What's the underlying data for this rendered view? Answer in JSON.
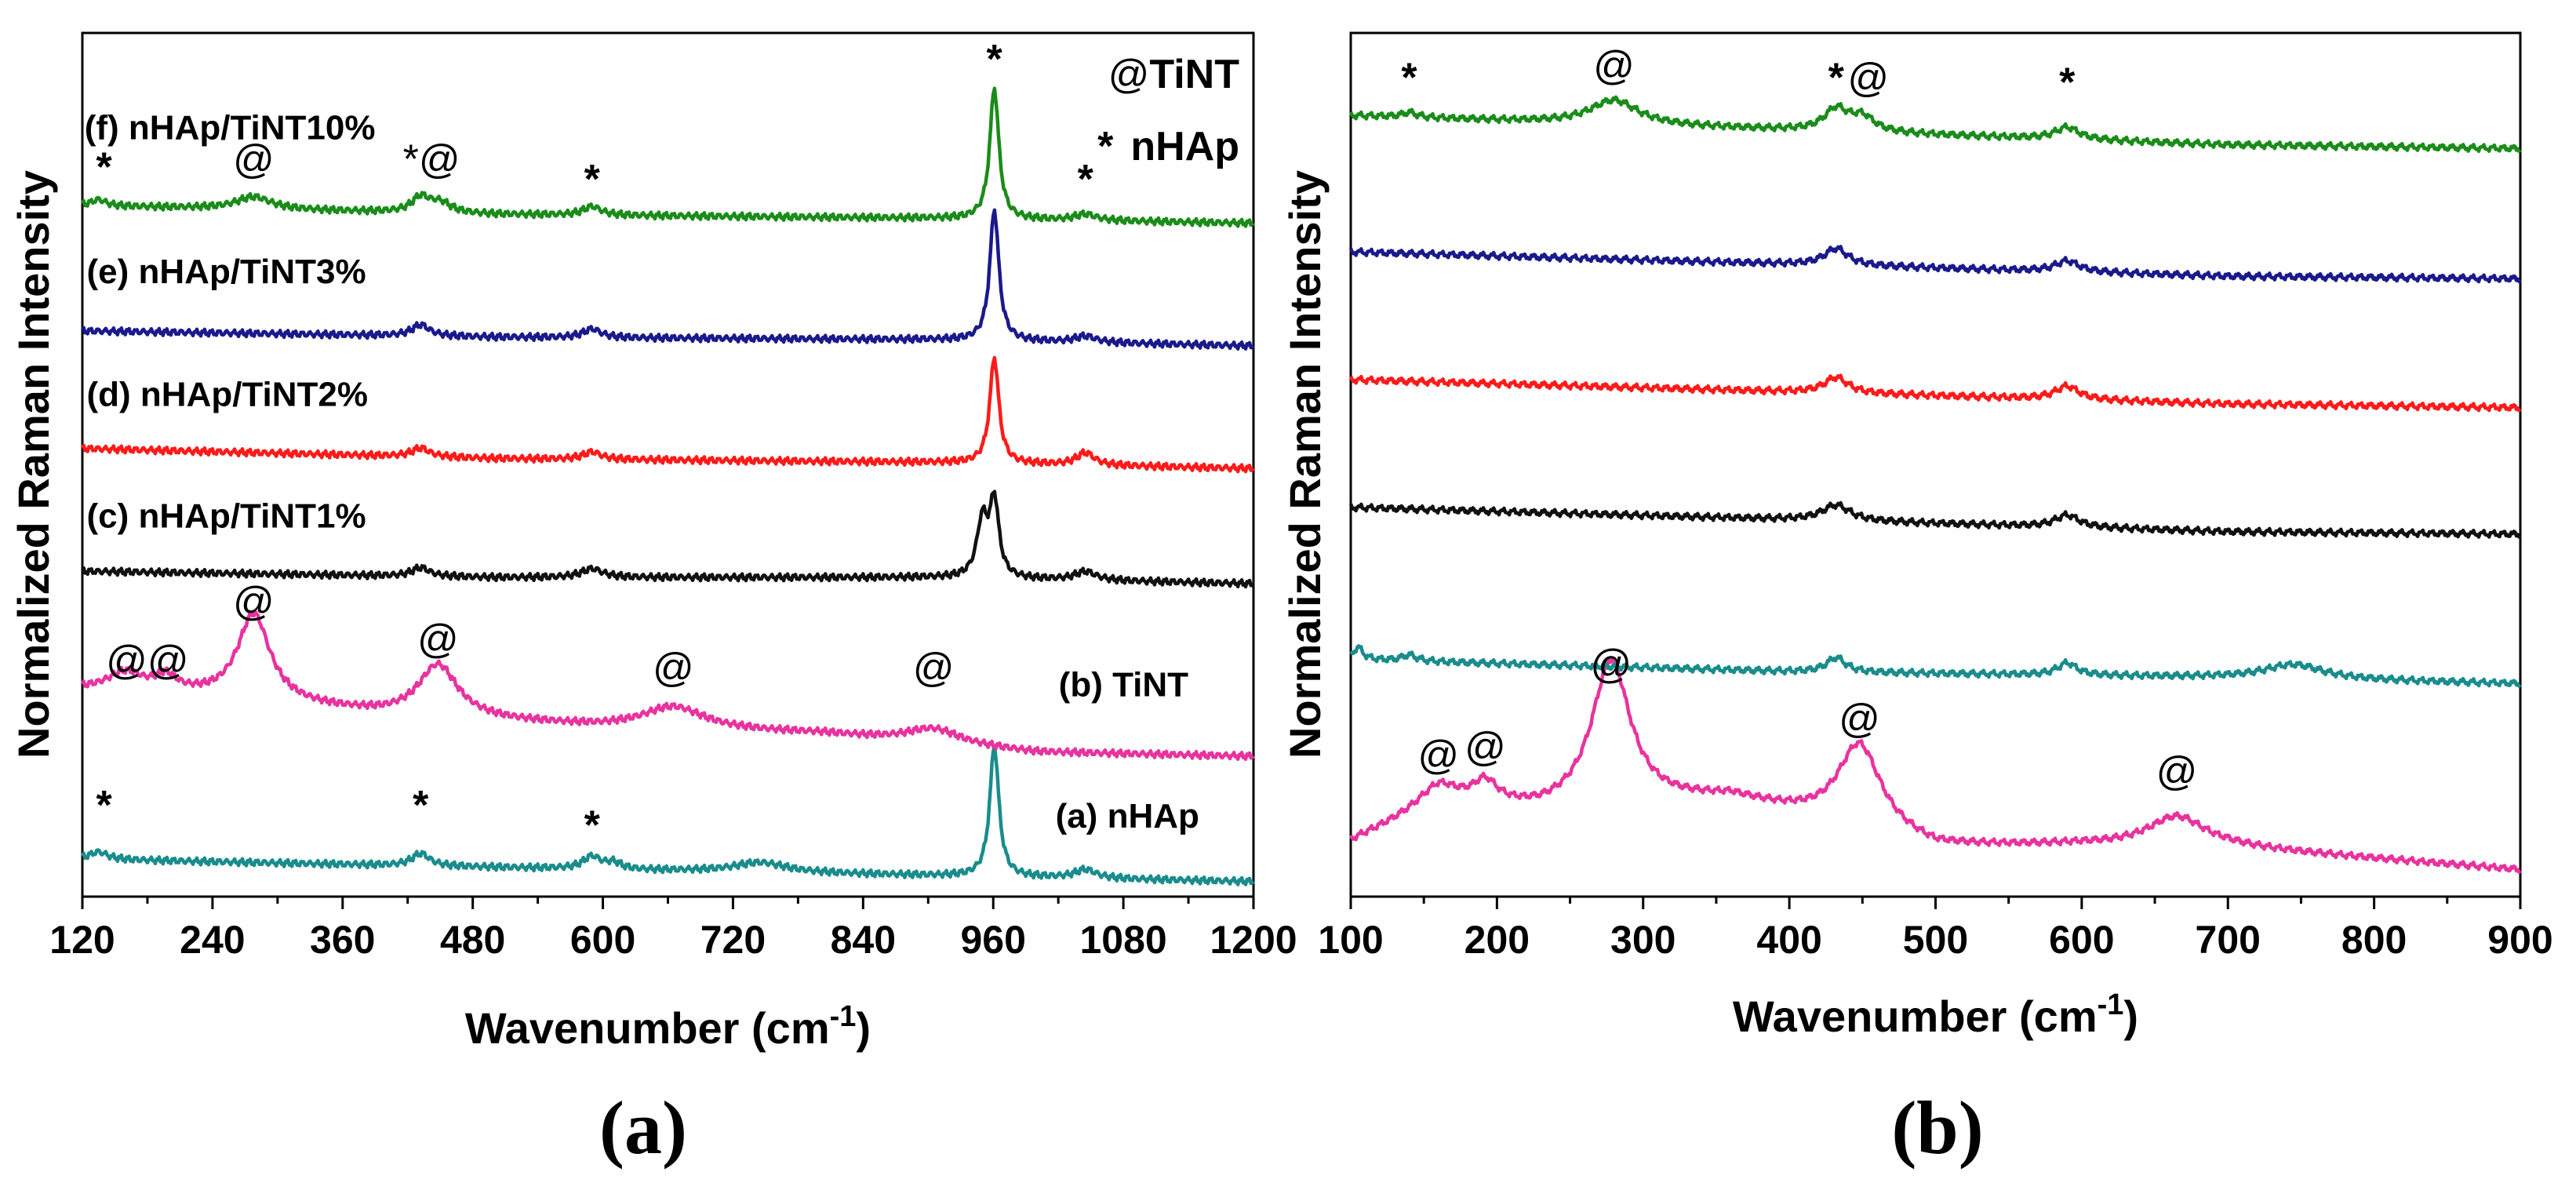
{
  "chart_data": [
    {
      "panel": "(a)",
      "type": "line",
      "xlabel": "Wavenumber (cm-1)",
      "xlabel_main": "Wavenumber (cm",
      "xlabel_sup": "-1",
      "xlabel_close": ")",
      "ylabel": "Normalized Raman Intensity",
      "xlim": [
        120,
        1200
      ],
      "ylim": [
        0,
        6.9
      ],
      "xticks": [
        120,
        240,
        360,
        480,
        600,
        720,
        840,
        960,
        1080,
        1200
      ],
      "legend": [
        {
          "symbol": "@",
          "label": "TiNT"
        },
        {
          "symbol": "*",
          "label": "nHAp"
        }
      ],
      "series": [
        {
          "name": "(a) nHAp",
          "color": "#1a8c8c",
          "base": 0.3,
          "bg": [
            [
              120,
              0.3
            ],
            [
              400,
              0.25
            ],
            [
              700,
              0.2
            ],
            [
              1200,
              0.12
            ]
          ],
          "peaks": [
            [
              135,
              0.06,
              10
            ],
            [
              432,
              0.1,
              10
            ],
            [
              590,
              0.1,
              10
            ],
            [
              610,
              0.05,
              8
            ],
            [
              745,
              0.08,
              30
            ],
            [
              961,
              1.05,
              5
            ],
            [
              1045,
              0.07,
              12
            ]
          ]
        },
        {
          "name": "(b) TiNT",
          "color": "#e8339e",
          "base": 1.15,
          "bg": [
            [
              120,
              1.65
            ],
            [
              220,
              1.6
            ],
            [
              400,
              1.45
            ],
            [
              600,
              1.35
            ],
            [
              800,
              1.3
            ],
            [
              1000,
              1.15
            ],
            [
              1200,
              1.12
            ]
          ],
          "peaks": [
            [
              160,
              0.15,
              20
            ],
            [
              197,
              0.12,
              12
            ],
            [
              278,
              0.7,
              18
            ],
            [
              448,
              0.42,
              22
            ],
            [
              665,
              0.18,
              35
            ],
            [
              905,
              0.12,
              30
            ]
          ]
        },
        {
          "name": "(c) nHAp/TiNT1%",
          "color": "#111111",
          "base": 2.58,
          "bg": [
            [
              120,
              2.6
            ],
            [
              500,
              2.55
            ],
            [
              900,
              2.55
            ],
            [
              1200,
              2.5
            ]
          ],
          "peaks": [
            [
              432,
              0.07,
              10
            ],
            [
              590,
              0.07,
              12
            ],
            [
              950,
              0.45,
              6
            ],
            [
              961,
              0.6,
              5
            ],
            [
              1045,
              0.07,
              12
            ]
          ]
        },
        {
          "name": "(d) nHAp/TiNT2%",
          "color": "#ff1a1a",
          "base": 3.55,
          "bg": [
            [
              120,
              3.58
            ],
            [
              500,
              3.5
            ],
            [
              900,
              3.47
            ],
            [
              1200,
              3.42
            ]
          ],
          "peaks": [
            [
              432,
              0.07,
              10
            ],
            [
              590,
              0.06,
              10
            ],
            [
              961,
              0.85,
              5
            ],
            [
              1045,
              0.1,
              10
            ]
          ]
        },
        {
          "name": "(e) nHAp/TiNT3%",
          "color": "#1a1a8c",
          "base": 4.52,
          "bg": [
            [
              120,
              4.52
            ],
            [
              500,
              4.47
            ],
            [
              900,
              4.45
            ],
            [
              1200,
              4.4
            ]
          ],
          "peaks": [
            [
              432,
              0.09,
              10
            ],
            [
              590,
              0.07,
              10
            ],
            [
              961,
              1.05,
              5
            ],
            [
              1045,
              0.05,
              12
            ]
          ]
        },
        {
          "name": "(f) nHAp/TiNT10%",
          "color": "#1a8c1a",
          "base": 5.48,
          "bg": [
            [
              120,
              5.52
            ],
            [
              500,
              5.45
            ],
            [
              900,
              5.42
            ],
            [
              1200,
              5.38
            ]
          ],
          "peaks": [
            [
              135,
              0.05,
              8
            ],
            [
              278,
              0.1,
              20
            ],
            [
              432,
              0.12,
              10
            ],
            [
              450,
              0.08,
              12
            ],
            [
              590,
              0.07,
              10
            ],
            [
              961,
              1.05,
              5
            ],
            [
              1045,
              0.05,
              12
            ]
          ]
        }
      ],
      "series_labels": [
        {
          "text": "(a) nHAp",
          "x": 1150,
          "y": 0.55,
          "anchor": "end"
        },
        {
          "text": "(b) TiNT",
          "x": 1140,
          "y": 1.6,
          "anchor": "end"
        },
        {
          "text": "(c) nHAp/TiNT1%",
          "x": 124,
          "y": 2.95,
          "anchor": "start"
        },
        {
          "text": "(d) nHAp/TiNT2%",
          "x": 124,
          "y": 3.92,
          "anchor": "start"
        },
        {
          "text": "(e) nHAp/TiNT3%",
          "x": 124,
          "y": 4.9,
          "anchor": "start"
        },
        {
          "text": "(f) nHAp/TiNT10%",
          "x": 122,
          "y": 6.05,
          "anchor": "start"
        }
      ],
      "annotations": [
        {
          "text": "*",
          "x": 140,
          "y": 0.62
        },
        {
          "text": "*",
          "x": 432,
          "y": 0.62
        },
        {
          "text": "*",
          "x": 590,
          "y": 0.46
        },
        {
          "text": "@@",
          "x": 180,
          "y": 1.78
        },
        {
          "text": "@",
          "x": 278,
          "y": 2.25
        },
        {
          "text": "@",
          "x": 448,
          "y": 1.95
        },
        {
          "text": "@",
          "x": 665,
          "y": 1.72
        },
        {
          "text": "@",
          "x": 905,
          "y": 1.72
        },
        {
          "text": "*",
          "x": 140,
          "y": 5.72
        },
        {
          "text": "@",
          "x": 278,
          "y": 5.78
        },
        {
          "text": "*@",
          "x": 442,
          "y": 5.78
        },
        {
          "text": "*",
          "x": 590,
          "y": 5.62
        },
        {
          "text": "*",
          "x": 961,
          "y": 6.58
        },
        {
          "text": "*",
          "x": 1045,
          "y": 5.62
        }
      ]
    },
    {
      "panel": "(b)",
      "type": "line",
      "xlabel": "Wavenumber (cm-1)",
      "xlabel_main": "Wavenumber (cm",
      "xlabel_sup": "-1",
      "xlabel_close": ")",
      "ylabel": "Normalized Raman Intensity",
      "xlim": [
        100,
        900
      ],
      "ylim": [
        0,
        7.1
      ],
      "xticks": [
        100,
        200,
        300,
        400,
        500,
        600,
        700,
        800,
        900
      ],
      "series": [
        {
          "name": "TiNT",
          "color": "#e8339e",
          "base": 0.4,
          "bg": [
            [
              100,
              0.45
            ],
            [
              160,
              0.75
            ],
            [
              230,
              0.7
            ],
            [
              360,
              0.8
            ],
            [
              500,
              0.4
            ],
            [
              600,
              0.42
            ],
            [
              700,
              0.4
            ],
            [
              900,
              0.22
            ]
          ],
          "peaks": [
            [
              160,
              0.15,
              18
            ],
            [
              192,
              0.18,
              10
            ],
            [
              278,
              1.2,
              16
            ],
            [
              448,
              0.7,
              18
            ],
            [
              665,
              0.25,
              24
            ]
          ]
        },
        {
          "name": "nHAp",
          "color": "#1a8c8c",
          "base": 1.75,
          "bg": [
            [
              100,
              1.95
            ],
            [
              400,
              1.85
            ],
            [
              700,
              1.8
            ],
            [
              900,
              1.75
            ]
          ],
          "peaks": [
            [
              105,
              0.1,
              4
            ],
            [
              140,
              0.05,
              6
            ],
            [
              432,
              0.12,
              8
            ],
            [
              590,
              0.1,
              8
            ],
            [
              745,
              0.12,
              25
            ]
          ]
        },
        {
          "name": "nHAp/TiNT1%",
          "color": "#111111",
          "base": 2.95,
          "bg": [
            [
              100,
              3.2
            ],
            [
              400,
              3.1
            ],
            [
              700,
              3.0
            ],
            [
              900,
              2.98
            ]
          ],
          "peaks": [
            [
              432,
              0.13,
              12
            ],
            [
              590,
              0.1,
              10
            ]
          ]
        },
        {
          "name": "nHAp/TiNT2%",
          "color": "#ff1a1a",
          "base": 4.0,
          "bg": [
            [
              100,
              4.25
            ],
            [
              400,
              4.15
            ],
            [
              700,
              4.05
            ],
            [
              900,
              4.02
            ]
          ],
          "peaks": [
            [
              432,
              0.13,
              10
            ],
            [
              590,
              0.11,
              10
            ]
          ]
        },
        {
          "name": "nHAp/TiNT3%",
          "color": "#1a1a8c",
          "base": 5.05,
          "bg": [
            [
              100,
              5.3
            ],
            [
              400,
              5.2
            ],
            [
              700,
              5.1
            ],
            [
              900,
              5.08
            ]
          ],
          "peaks": [
            [
              432,
              0.14,
              10
            ],
            [
              590,
              0.09,
              10
            ]
          ]
        },
        {
          "name": "nHAp/TiNT10%",
          "color": "#1a8c1a",
          "base": 6.1,
          "bg": [
            [
              100,
              6.42
            ],
            [
              400,
              6.3
            ],
            [
              700,
              6.18
            ],
            [
              900,
              6.15
            ]
          ],
          "peaks": [
            [
              140,
              0.04,
              6
            ],
            [
              280,
              0.2,
              20
            ],
            [
              432,
              0.18,
              10
            ],
            [
              450,
              0.12,
              10
            ],
            [
              590,
              0.1,
              10
            ]
          ]
        }
      ],
      "annotations": [
        {
          "text": "@",
          "x": 160,
          "y": 1.05
        },
        {
          "text": "@",
          "x": 192,
          "y": 1.12
        },
        {
          "text": "@",
          "x": 278,
          "y": 1.8
        },
        {
          "text": "@",
          "x": 448,
          "y": 1.35
        },
        {
          "text": "@",
          "x": 665,
          "y": 0.92
        },
        {
          "text": "*",
          "x": 140,
          "y": 6.62
        },
        {
          "text": "@",
          "x": 280,
          "y": 6.72
        },
        {
          "text": "*",
          "x": 432,
          "y": 6.62
        },
        {
          "text": "@",
          "x": 454,
          "y": 6.62
        },
        {
          "text": "*",
          "x": 590,
          "y": 6.58
        }
      ]
    }
  ],
  "panel_labels": [
    "(a)",
    "(b)"
  ]
}
